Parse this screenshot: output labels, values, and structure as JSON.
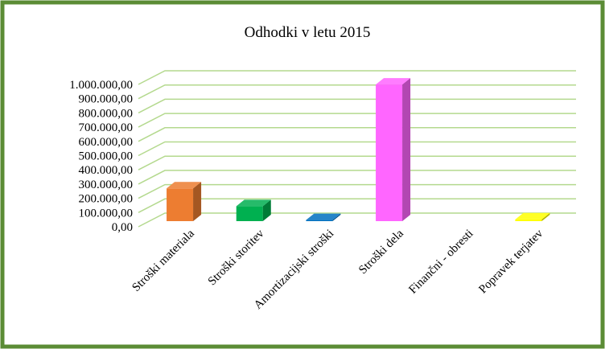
{
  "chart_data": {
    "type": "bar3d",
    "title": "Odhodki v letu 2015",
    "categories": [
      "Stroški materiala",
      "Stroški storitev",
      "Amortizacijski stroški",
      "Stroški dela",
      "Finančni  - obresti",
      "Popravek terjatev"
    ],
    "values": [
      230000,
      105000,
      8000,
      960000,
      0,
      12000
    ],
    "colors": [
      "#ed7d31",
      "#00b050",
      "#0070c0",
      "#ff66ff",
      "#a5a5a5",
      "#ffff00"
    ],
    "ylim": [
      0,
      1000000
    ],
    "yticks": [
      {
        "value": 0,
        "label": "0,00"
      },
      {
        "value": 100000,
        "label": "100.000,00"
      },
      {
        "value": 200000,
        "label": "200.000,00"
      },
      {
        "value": 300000,
        "label": "300.000,00"
      },
      {
        "value": 400000,
        "label": "400.000,00"
      },
      {
        "value": 500000,
        "label": "500.000,00"
      },
      {
        "value": 600000,
        "label": "600.000,00"
      },
      {
        "value": 700000,
        "label": "700.000,00"
      },
      {
        "value": 800000,
        "label": "800.000,00"
      },
      {
        "value": 900000,
        "label": "900.000,00"
      },
      {
        "value": 1000000,
        "label": "1.000.000,00"
      }
    ],
    "grid": true
  }
}
